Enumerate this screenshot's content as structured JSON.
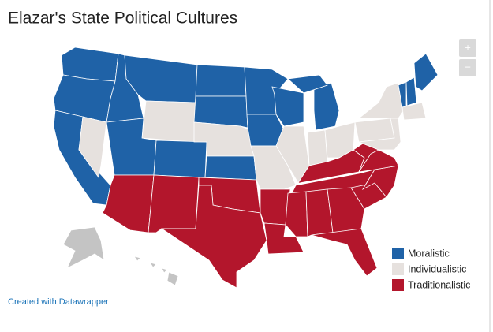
{
  "title": "Elazar's State Political Cultures",
  "legend": [
    {
      "name": "Moralistic",
      "color": "#1f62a7"
    },
    {
      "name": "Individualistic",
      "color": "#e6e1de"
    },
    {
      "name": "Traditionalistic",
      "color": "#b3162c"
    }
  ],
  "credit": "Created with Datawrapper",
  "zoom": {
    "in": "+",
    "out": "−"
  }
}
